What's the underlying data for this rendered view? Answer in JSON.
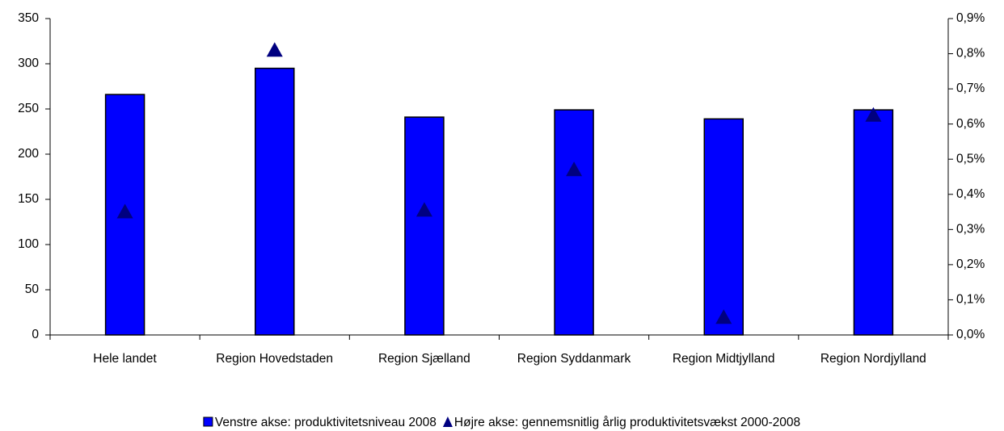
{
  "chart_data": {
    "type": "bar-scatter",
    "categories": [
      "Hele landet",
      "Region Hovedstaden",
      "Region Sjælland",
      "Region Syddanmark",
      "Region Midtjylland",
      "Region Nordjylland"
    ],
    "series": [
      {
        "name": "Venstre akse: produktivitetsniveau 2008",
        "type": "bar",
        "color": "#0000ff",
        "values": [
          266,
          295,
          241,
          249,
          239,
          249
        ]
      },
      {
        "name": "Højre akse: gennemsnitlig årlig produktivitetsvækst 2000-2008",
        "type": "scatter",
        "axis": "y2",
        "color": "#000080",
        "values": [
          0.35,
          0.81,
          0.355,
          0.47,
          0.05,
          0.625
        ]
      }
    ],
    "ylim": [
      0,
      350
    ],
    "yticks": [
      0,
      50,
      100,
      150,
      200,
      250,
      300,
      350
    ],
    "y2lim": [
      0,
      0.9
    ],
    "y2ticks": [
      {
        "value": 0,
        "label": "0,0%"
      },
      {
        "value": 0.1,
        "label": "0,1%"
      },
      {
        "value": 0.2,
        "label": "0,2%"
      },
      {
        "value": 0.3,
        "label": "0,3%"
      },
      {
        "value": 0.4,
        "label": "0,4%"
      },
      {
        "value": 0.5,
        "label": "0,5%"
      },
      {
        "value": 0.6,
        "label": "0,6%"
      },
      {
        "value": 0.7,
        "label": "0,7%"
      },
      {
        "value": 0.8,
        "label": "0,8%"
      },
      {
        "value": 0.9,
        "label": "0,9%"
      }
    ],
    "legend": "bottom"
  }
}
